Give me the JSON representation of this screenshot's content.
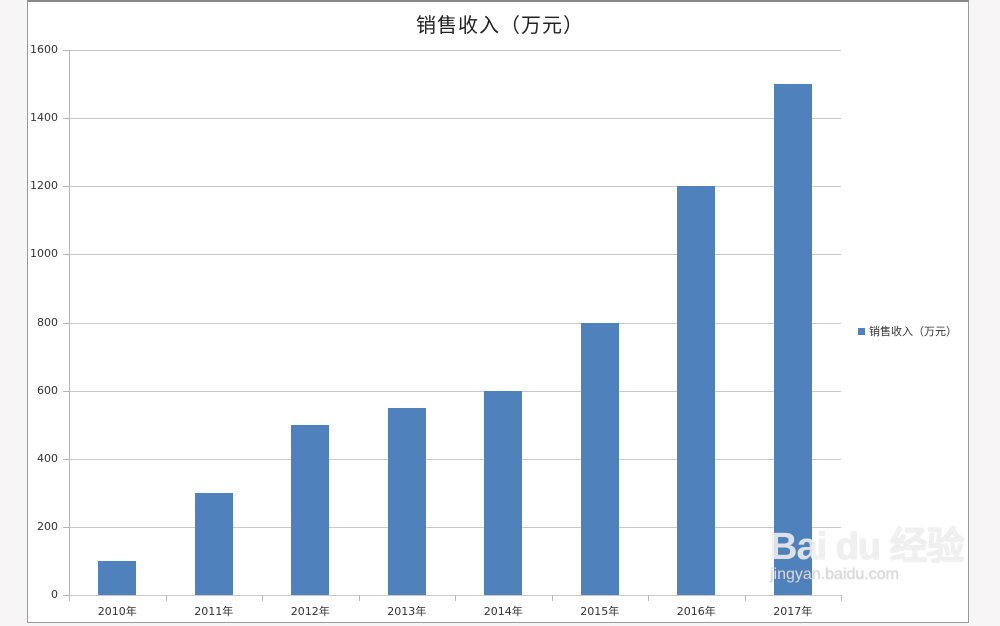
{
  "chart_data": {
    "type": "bar",
    "title": "销售收入（万元）",
    "categories": [
      "2010年",
      "2011年",
      "2012年",
      "2013年",
      "2014年",
      "2015年",
      "2016年",
      "2017年"
    ],
    "series": [
      {
        "name": "销售收入（万元）",
        "values": [
          100,
          300,
          500,
          550,
          600,
          800,
          1200,
          1500
        ],
        "color": "#4f81bd"
      }
    ],
    "xlabel": "",
    "ylabel": "",
    "ylim": [
      0,
      1600
    ],
    "yticks": [
      0,
      200,
      400,
      600,
      800,
      1000,
      1200,
      1400,
      1600
    ],
    "grid": true,
    "legend_position": "right"
  },
  "watermark": {
    "main": "Bai du 经验",
    "sub": "jingyan.baidu.com"
  }
}
